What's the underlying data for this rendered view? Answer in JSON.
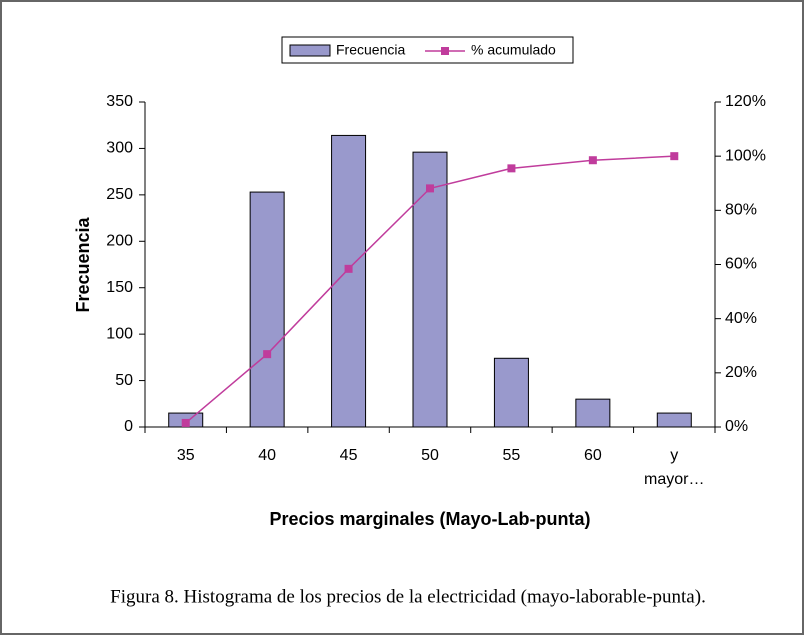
{
  "chart_data": {
    "type": "bar",
    "categories": [
      "35",
      "40",
      "45",
      "50",
      "55",
      "60",
      "y mayor…"
    ],
    "series": [
      {
        "name": "Frecuencia",
        "type": "bar",
        "color": "#9999cc",
        "values": [
          15,
          253,
          314,
          296,
          74,
          30,
          15
        ]
      },
      {
        "name": "% acumulado",
        "type": "line",
        "axis": "y2",
        "color": "#c03c9c",
        "values": [
          1.5,
          26.9,
          58.4,
          88.1,
          95.5,
          98.5,
          100
        ]
      }
    ],
    "ylabel": "Frecuencia",
    "xlabel": "Precios marginales (Mayo-Lab-punta)",
    "caption": "Figura 8. Histograma de los precios de la electricidad (mayo-laborable-punta).",
    "ylim": [
      0,
      350
    ],
    "yticks": [
      0,
      50,
      100,
      150,
      200,
      250,
      300,
      350
    ],
    "y2lim": [
      0,
      120
    ],
    "y2ticks": [
      {
        "value": 0,
        "label": "0%"
      },
      {
        "value": 20,
        "label": "20%"
      },
      {
        "value": 40,
        "label": "40%"
      },
      {
        "value": 60,
        "label": "60%"
      },
      {
        "value": 80,
        "label": "80%"
      },
      {
        "value": 100,
        "label": "100%"
      },
      {
        "value": 120,
        "label": "120%"
      }
    ],
    "legend": "top",
    "grid": false
  }
}
